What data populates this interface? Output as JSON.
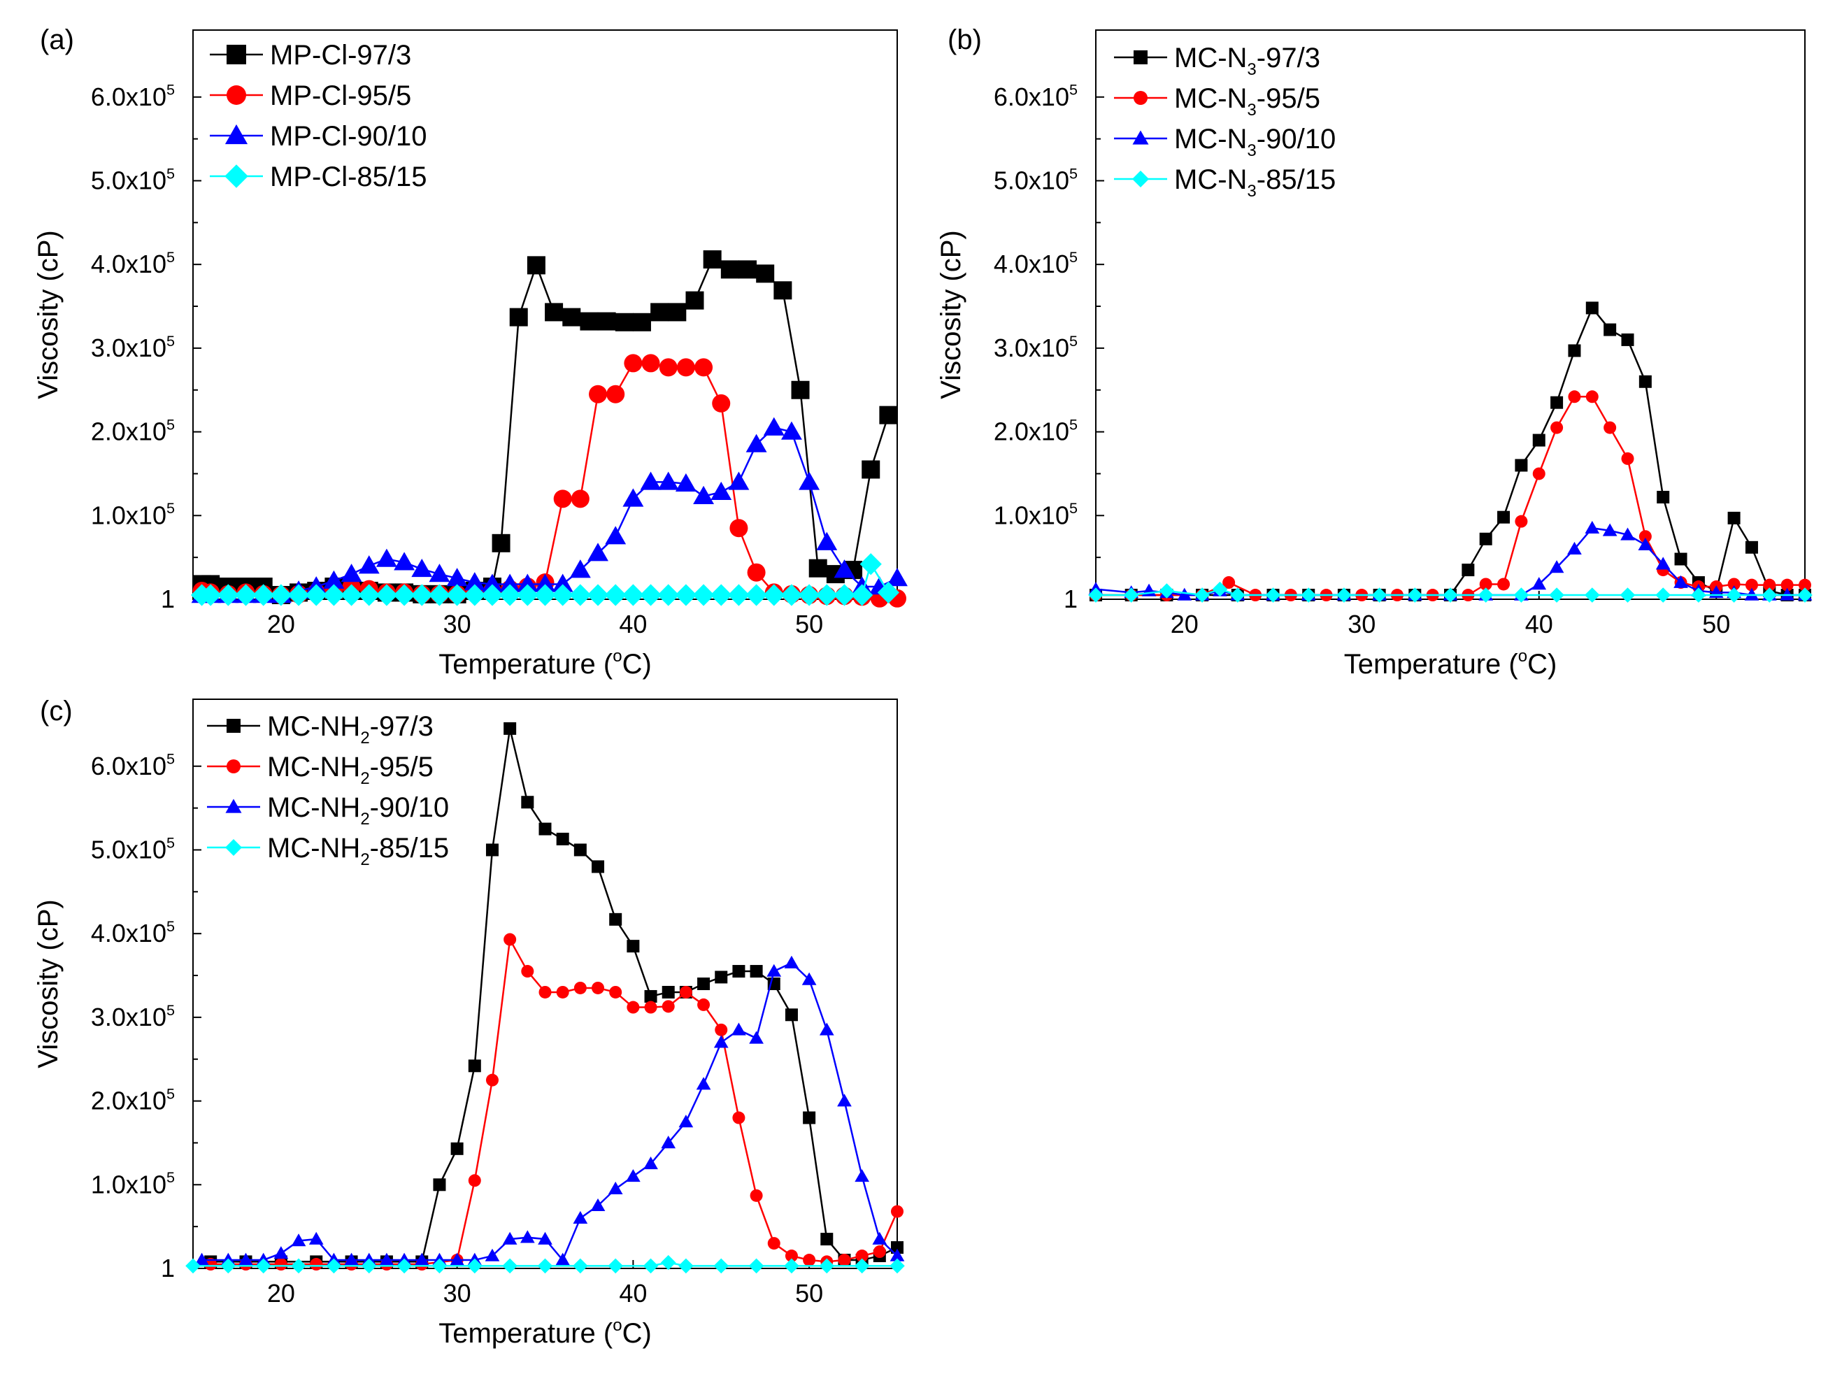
{
  "figure": {
    "x_ticks": [
      20,
      30,
      40,
      50
    ],
    "y_ticks": [
      {
        "value": 1,
        "mantissa": "1",
        "exp": ""
      },
      {
        "value": 100000,
        "mantissa": "1.0x10",
        "exp": "5"
      },
      {
        "value": 200000,
        "mantissa": "2.0x10",
        "exp": "5"
      },
      {
        "value": 300000,
        "mantissa": "3.0x10",
        "exp": "5"
      },
      {
        "value": 400000,
        "mantissa": "4.0x10",
        "exp": "5"
      },
      {
        "value": 500000,
        "mantissa": "5.0x10",
        "exp": "5"
      },
      {
        "value": 600000,
        "mantissa": "6.0x10",
        "exp": "5"
      }
    ],
    "colors": {
      "black": "#000000",
      "red": "#ff0000",
      "blue": "#0000ff",
      "cyan": "#00ffff"
    }
  },
  "chart_data": [
    {
      "type": "line",
      "panel_label": "(a)",
      "xlabel": {
        "pre": "Temperature (",
        "sup": "o",
        "post": "C)"
      },
      "ylabel": "Viscosity (cP)",
      "xlim": [
        15,
        55
      ],
      "ylim": [
        0,
        680000
      ],
      "marker_size": "large",
      "legend_position": "top-left",
      "series": [
        {
          "label": {
            "pre": "MP-Cl-97/3",
            "sub": "",
            "post": ""
          },
          "color": "#000000",
          "marker": "square",
          "x": [
            15.5,
            16,
            17,
            18,
            19,
            20,
            21,
            22,
            23,
            24,
            25,
            26,
            27,
            28,
            29,
            30,
            31,
            32,
            32.5,
            33.5,
            34.5,
            35.5,
            36.5,
            37.5,
            38.5,
            39.5,
            40.5,
            41.5,
            42.5,
            43.5,
            44.5,
            45.5,
            46.5,
            47.5,
            48.5,
            49.5,
            50.5,
            51.5,
            52.5,
            53.5,
            54.5
          ],
          "y": [
            18000,
            18000,
            15000,
            15000,
            15000,
            5000,
            8000,
            10000,
            15000,
            10000,
            10000,
            8000,
            8000,
            6000,
            6000,
            6000,
            10000,
            15000,
            67000,
            337000,
            399000,
            343000,
            337000,
            332000,
            332000,
            331000,
            331000,
            343000,
            343000,
            357000,
            406000,
            394000,
            394000,
            389000,
            369000,
            250000,
            37000,
            30000,
            35000,
            155000,
            220000
          ]
        },
        {
          "label": {
            "pre": "MP-Cl-95/5",
            "sub": "",
            "post": ""
          },
          "color": "#ff0000",
          "marker": "circle",
          "x": [
            15.5,
            16,
            17,
            18,
            19,
            20,
            21,
            22,
            23,
            24,
            25,
            26,
            27,
            28,
            29,
            30,
            31,
            32,
            33,
            34,
            35,
            36,
            37,
            38,
            39,
            40,
            41,
            42,
            43,
            44,
            45,
            46,
            47,
            48,
            49,
            50,
            51,
            52,
            53,
            54,
            55
          ],
          "y": [
            10000,
            8000,
            6000,
            8000,
            6000,
            5000,
            6000,
            8000,
            10000,
            15000,
            12000,
            8000,
            8000,
            6000,
            6000,
            6000,
            8000,
            10000,
            12000,
            15000,
            20000,
            120000,
            120000,
            245000,
            245000,
            282000,
            282000,
            277000,
            277000,
            277000,
            234000,
            85000,
            32000,
            8000,
            6000,
            5000,
            4000,
            4000,
            3000,
            1000,
            1000
          ]
        },
        {
          "label": {
            "pre": "MP-Cl-90/10",
            "sub": "",
            "post": ""
          },
          "color": "#0000ff",
          "marker": "triangle",
          "x": [
            15.5,
            16,
            17,
            18,
            19,
            20,
            21,
            22,
            23,
            24,
            25,
            26,
            27,
            28,
            29,
            30,
            31,
            32,
            33,
            34,
            35,
            36,
            37,
            38,
            39,
            40,
            41,
            42,
            43,
            44,
            45,
            46,
            47,
            48,
            49,
            50,
            51,
            52,
            53,
            54,
            55
          ],
          "y": [
            5000,
            5000,
            5000,
            5000,
            5000,
            5000,
            10000,
            15000,
            22000,
            30000,
            40000,
            48000,
            44000,
            36000,
            30000,
            25000,
            20000,
            18000,
            18000,
            18000,
            18000,
            18000,
            35000,
            55000,
            75000,
            120000,
            140000,
            140000,
            138000,
            123000,
            128000,
            140000,
            185000,
            205000,
            200000,
            140000,
            68000,
            35000,
            15000,
            15000,
            25000
          ]
        },
        {
          "label": {
            "pre": "MP-Cl-85/15",
            "sub": "",
            "post": ""
          },
          "color": "#00ffff",
          "marker": "diamond",
          "x": [
            15.5,
            16,
            17,
            18,
            19,
            20,
            21,
            22,
            23,
            24,
            25,
            26,
            27,
            28,
            29,
            30,
            31,
            32,
            33,
            34,
            35,
            36,
            37,
            38,
            39,
            40,
            41,
            42,
            43,
            44,
            45,
            46,
            47,
            48,
            49,
            50,
            51,
            52,
            53,
            53.5,
            54.5
          ],
          "y": [
            5000,
            5000,
            5000,
            5000,
            5000,
            5000,
            5000,
            5000,
            5000,
            5000,
            5000,
            5000,
            5000,
            5000,
            5000,
            5000,
            5000,
            5000,
            5000,
            5000,
            5000,
            5000,
            5000,
            5000,
            5000,
            5000,
            5000,
            5000,
            5000,
            5000,
            5000,
            5000,
            5000,
            5000,
            5000,
            5000,
            5000,
            5000,
            5000,
            42000,
            8000
          ]
        }
      ]
    },
    {
      "type": "line",
      "panel_label": "(b)",
      "xlabel": {
        "pre": "Temperature (",
        "sup": "o",
        "post": "C)"
      },
      "ylabel": "Viscosity (cP)",
      "xlim": [
        15,
        55
      ],
      "ylim": [
        0,
        680000
      ],
      "marker_size": "small",
      "legend_position": "top-left",
      "series": [
        {
          "label": {
            "pre": "MC-N",
            "sub": "3",
            "post": "-97/3"
          },
          "color": "#000000",
          "marker": "square",
          "x": [
            15,
            17,
            19,
            21,
            23,
            25,
            27,
            29,
            31,
            33,
            35,
            36,
            37,
            38,
            39,
            40,
            41,
            42,
            43,
            44,
            45,
            46,
            47,
            48,
            49,
            50,
            51,
            52,
            53,
            54,
            55
          ],
          "y": [
            5000,
            5000,
            5000,
            5000,
            5000,
            5000,
            5000,
            5000,
            5000,
            5000,
            5000,
            35000,
            72000,
            98000,
            160000,
            190000,
            235000,
            297000,
            348000,
            322000,
            310000,
            260000,
            122000,
            48000,
            20000,
            10000,
            97000,
            62000,
            10000,
            5000,
            5000
          ]
        },
        {
          "label": {
            "pre": "MC-N",
            "sub": "3",
            "post": "-95/5"
          },
          "color": "#ff0000",
          "marker": "circle",
          "x": [
            15,
            17,
            19,
            21,
            22.5,
            24,
            26,
            28,
            30,
            32,
            34,
            36,
            37,
            38,
            39,
            40,
            41,
            42,
            43,
            44,
            45,
            46,
            47,
            48,
            49,
            50,
            51,
            52,
            53,
            54,
            55
          ],
          "y": [
            5000,
            5000,
            5000,
            5000,
            20000,
            5000,
            5000,
            5000,
            5000,
            5000,
            5000,
            5000,
            18000,
            18000,
            93000,
            150000,
            205000,
            242000,
            242000,
            205000,
            168000,
            75000,
            35000,
            20000,
            15000,
            15000,
            18000,
            17000,
            17000,
            17000,
            17000
          ]
        },
        {
          "label": {
            "pre": "MC-N",
            "sub": "3",
            "post": "-90/10"
          },
          "color": "#0000ff",
          "marker": "triangle",
          "x": [
            15,
            17,
            18,
            19,
            20,
            21,
            22,
            23,
            25,
            27,
            29,
            31,
            33,
            35,
            37,
            39,
            40,
            41,
            42,
            43,
            44,
            45,
            46,
            47,
            48,
            49,
            50,
            51,
            52,
            53,
            54,
            55
          ],
          "y": [
            12000,
            8000,
            10000,
            8000,
            5000,
            5000,
            10000,
            5000,
            5000,
            5000,
            5000,
            5000,
            5000,
            5000,
            5000,
            5000,
            18000,
            38000,
            60000,
            85000,
            82000,
            77000,
            65000,
            42000,
            20000,
            10000,
            8000,
            8000,
            5000,
            5000,
            5000,
            5000
          ]
        },
        {
          "label": {
            "pre": "MC-N",
            "sub": "3",
            "post": "-85/15"
          },
          "color": "#00ffff",
          "marker": "diamond",
          "x": [
            15,
            17,
            19,
            21,
            22,
            23,
            25,
            27,
            29,
            31,
            33,
            35,
            37,
            39,
            41,
            43,
            45,
            47,
            49,
            51,
            53,
            55
          ],
          "y": [
            5000,
            5000,
            10000,
            5000,
            12000,
            5000,
            5000,
            5000,
            5000,
            5000,
            5000,
            5000,
            5000,
            5000,
            5000,
            5000,
            5000,
            5000,
            5000,
            5000,
            5000,
            5000
          ]
        }
      ]
    },
    {
      "type": "line",
      "panel_label": "(c)",
      "xlabel": {
        "pre": "Temperature (",
        "sup": "o",
        "post": "C)"
      },
      "ylabel": "Viscosity (cP)",
      "xlim": [
        15,
        55
      ],
      "ylim": [
        0,
        680000
      ],
      "marker_size": "small",
      "legend_position": "top-left",
      "series": [
        {
          "label": {
            "pre": "MC-NH",
            "sub": "2",
            "post": "-97/3"
          },
          "color": "#000000",
          "marker": "square",
          "x": [
            16,
            18,
            20,
            22,
            24,
            26,
            28,
            29,
            30,
            31,
            32,
            33,
            34,
            35,
            36,
            37,
            38,
            39,
            40,
            41,
            42,
            43,
            44,
            45,
            46,
            47,
            48,
            49,
            50,
            51,
            52,
            53,
            54,
            55
          ],
          "y": [
            8000,
            8000,
            8000,
            8000,
            8000,
            8000,
            8000,
            100000,
            143000,
            242000,
            500000,
            645000,
            557000,
            525000,
            513000,
            500000,
            480000,
            417000,
            385000,
            325000,
            330000,
            330000,
            340000,
            348000,
            355000,
            355000,
            340000,
            303000,
            180000,
            35000,
            10000,
            10000,
            15000,
            25000
          ]
        },
        {
          "label": {
            "pre": "MC-NH",
            "sub": "2",
            "post": "-95/5"
          },
          "color": "#ff0000",
          "marker": "circle",
          "x": [
            16,
            18,
            20,
            22,
            24,
            26,
            28,
            30,
            31,
            32,
            33,
            34,
            35,
            36,
            37,
            38,
            39,
            40,
            41,
            42,
            43,
            44,
            45,
            46,
            47,
            48,
            49,
            50,
            51,
            52,
            53,
            54,
            55
          ],
          "y": [
            5000,
            5000,
            5000,
            5000,
            5000,
            5000,
            5000,
            10000,
            105000,
            225000,
            393000,
            355000,
            330000,
            330000,
            335000,
            335000,
            330000,
            312000,
            312000,
            313000,
            330000,
            315000,
            285000,
            180000,
            87000,
            30000,
            15000,
            10000,
            8000,
            10000,
            15000,
            20000,
            68000
          ]
        },
        {
          "label": {
            "pre": "MC-NH",
            "sub": "2",
            "post": "-90/10"
          },
          "color": "#0000ff",
          "marker": "triangle",
          "x": [
            15.5,
            17,
            18,
            19,
            20,
            21,
            22,
            23,
            24,
            25,
            26,
            27,
            28,
            29,
            30,
            31,
            32,
            33,
            34,
            35,
            36,
            37,
            38,
            39,
            40,
            41,
            42,
            43,
            44,
            45,
            46,
            47,
            48,
            49,
            50,
            51,
            52,
            53,
            54,
            55
          ],
          "y": [
            10000,
            10000,
            10000,
            10000,
            18000,
            33000,
            35000,
            10000,
            10000,
            10000,
            10000,
            10000,
            10000,
            10000,
            10000,
            10000,
            15000,
            35000,
            37000,
            35000,
            10000,
            60000,
            75000,
            95000,
            110000,
            125000,
            150000,
            175000,
            220000,
            270000,
            285000,
            275000,
            355000,
            365000,
            345000,
            285000,
            200000,
            110000,
            35000,
            15000
          ]
        },
        {
          "label": {
            "pre": "MC-NH",
            "sub": "2",
            "post": "-85/15"
          },
          "color": "#00ffff",
          "marker": "diamond",
          "x": [
            15,
            17,
            19,
            21,
            23,
            25,
            27,
            29,
            31,
            33,
            35,
            37,
            39,
            41,
            42,
            43,
            45,
            47,
            49,
            51,
            53,
            55
          ],
          "y": [
            3000,
            3000,
            3000,
            3000,
            3000,
            3000,
            3000,
            3000,
            3000,
            3000,
            3000,
            3000,
            3000,
            3000,
            7000,
            3000,
            3000,
            3000,
            3000,
            3000,
            3000,
            3000
          ]
        }
      ]
    }
  ]
}
